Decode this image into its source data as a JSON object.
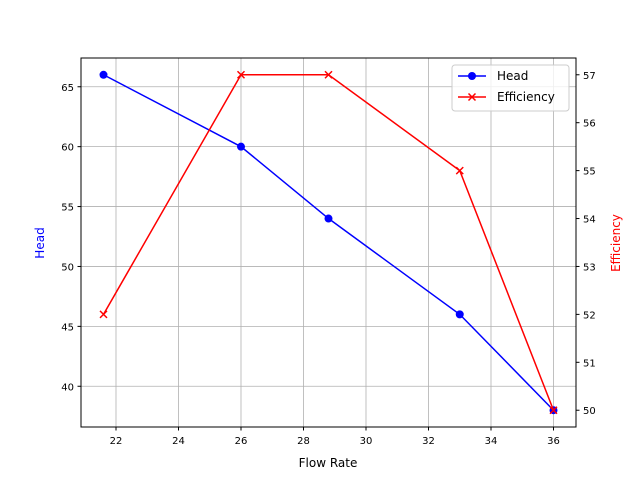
{
  "chart_data": {
    "type": "line",
    "xlabel": "Flow Rate",
    "ylabel_left": "Head",
    "ylabel_right": "Efficiency",
    "x": [
      21.6,
      26,
      28.8,
      33,
      36
    ],
    "xlim": [
      20.88,
      36.72
    ],
    "xticks": [
      22,
      24,
      26,
      28,
      30,
      32,
      34,
      36
    ],
    "grid": true,
    "legend_position": "top-right",
    "series": [
      {
        "name": "Head",
        "axis": "left",
        "color": "#0000ff",
        "marker": "circle",
        "values": [
          66,
          60,
          54,
          46,
          38
        ]
      },
      {
        "name": "Efficiency",
        "axis": "right",
        "color": "#ff0000",
        "marker": "x",
        "values": [
          52,
          57,
          57,
          55,
          50
        ]
      }
    ],
    "ylim_left": [
      36.6,
      67.4
    ],
    "yticks_left": [
      40,
      45,
      50,
      55,
      60,
      65
    ],
    "ylim_right": [
      49.65,
      57.35
    ],
    "yticks_right": [
      50,
      51,
      52,
      53,
      54,
      55,
      56,
      57
    ]
  }
}
